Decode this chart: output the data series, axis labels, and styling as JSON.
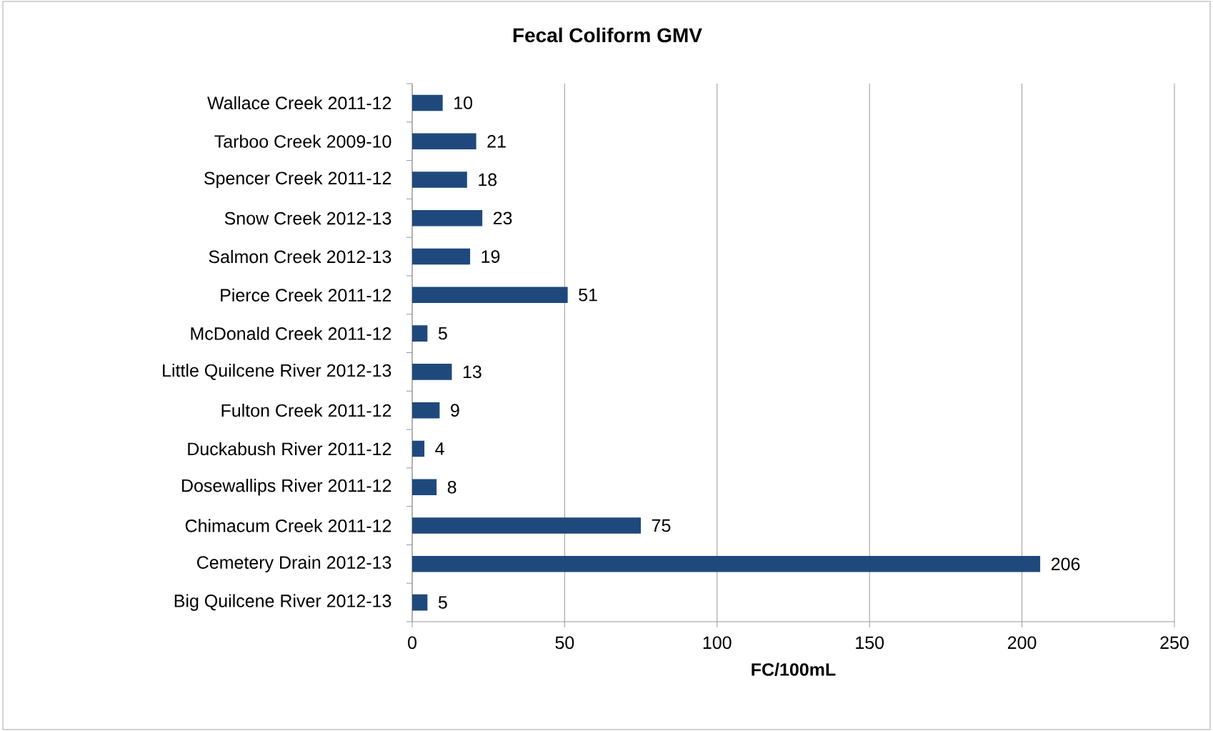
{
  "chart_data": {
    "type": "bar",
    "orientation": "horizontal",
    "title": "Fecal Coliform GMV",
    "xlabel": "FC/100mL",
    "categories": [
      "Wallace Creek 2011-12",
      "Tarboo Creek 2009-10",
      "Spencer Creek 2011-12",
      "Snow Creek 2012-13",
      "Salmon Creek 2012-13",
      "Pierce Creek 2011-12",
      "McDonald Creek 2011-12",
      "Little Quilcene River 2012-13",
      "Fulton Creek 2011-12",
      "Duckabush River 2011-12",
      "Dosewallips River 2011-12",
      "Chimacum Creek 2011-12",
      "Cemetery Drain 2012-13",
      "Big Quilcene River 2012-13"
    ],
    "values": [
      10,
      21,
      18,
      23,
      19,
      51,
      5,
      13,
      9,
      4,
      8,
      75,
      206,
      5
    ],
    "color": "#1f497d",
    "data_labels": true,
    "xlim": [
      0,
      250
    ],
    "xticks": [
      0,
      50,
      100,
      150,
      200,
      250
    ],
    "grid": "x"
  }
}
